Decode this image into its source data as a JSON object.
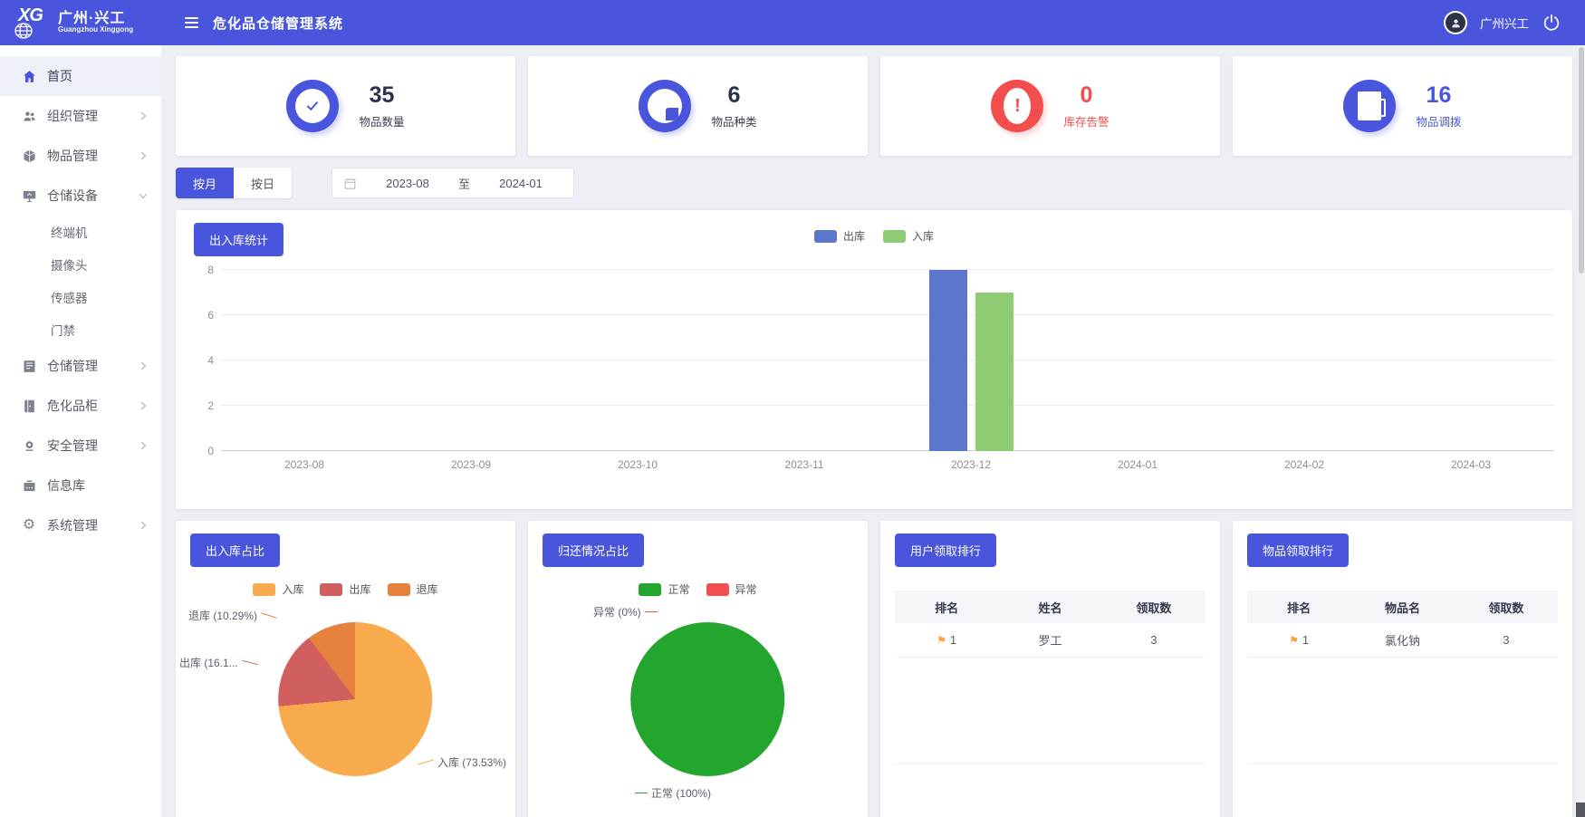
{
  "header": {
    "logo_text": "XG",
    "brand_title": "广州·兴工",
    "brand_subtitle": "Guangzhou Xinggong",
    "app_title": "危化品仓储管理系统",
    "user_name": "广州兴工"
  },
  "sidebar": {
    "items": [
      {
        "label": "首页"
      },
      {
        "label": "组织管理"
      },
      {
        "label": "物品管理"
      },
      {
        "label": "仓储设备"
      },
      {
        "label": "仓储管理"
      },
      {
        "label": "危化品柜"
      },
      {
        "label": "安全管理"
      },
      {
        "label": "信息库"
      },
      {
        "label": "系统管理"
      }
    ],
    "sub_items": [
      {
        "label": "终端机"
      },
      {
        "label": "摄像头"
      },
      {
        "label": "传感器"
      },
      {
        "label": "门禁"
      }
    ]
  },
  "stats": [
    {
      "value": "35",
      "label": "物品数量"
    },
    {
      "value": "6",
      "label": "物品种类"
    },
    {
      "value": "0",
      "label": "库存告警"
    },
    {
      "value": "16",
      "label": "物品调拨"
    }
  ],
  "filters": {
    "by_month": "按月",
    "by_day": "按日",
    "date_start": "2023-08",
    "date_to": "至",
    "date_end": "2024-01"
  },
  "chart_data": [
    {
      "type": "bar",
      "title": "出入库统计",
      "categories": [
        "2023-08",
        "2023-09",
        "2023-10",
        "2023-11",
        "2023-12",
        "2024-01",
        "2024-02",
        "2024-03"
      ],
      "series": [
        {
          "name": "出库",
          "color": "#5b76cb",
          "values": [
            0,
            0,
            0,
            0,
            8,
            0,
            0,
            0
          ]
        },
        {
          "name": "入库",
          "color": "#8ecb73",
          "values": [
            0,
            0,
            0,
            0,
            7,
            0,
            0,
            0
          ]
        }
      ],
      "xlabel": "",
      "ylabel": "",
      "ylim": [
        0,
        8
      ],
      "yticks": [
        0,
        2,
        4,
        6,
        8
      ],
      "grid": true,
      "legend_position": "top-center"
    },
    {
      "type": "pie",
      "title": "出入库占比",
      "slices": [
        {
          "name": "入库",
          "value_pct": 73.53,
          "color": "#f7ab4d",
          "label": "入库 (73.53%)"
        },
        {
          "name": "出库",
          "value_pct": 16.18,
          "color": "#d25f5f",
          "label": "出库 (16.1..."
        },
        {
          "name": "退库",
          "value_pct": 10.29,
          "color": "#e5823e",
          "label": "退库 (10.29%)"
        }
      ],
      "legend_position": "top-center"
    },
    {
      "type": "pie",
      "title": "归还情况占比",
      "slices": [
        {
          "name": "正常",
          "value_pct": 100,
          "color": "#24a52e",
          "label": "正常 (100%)"
        },
        {
          "name": "异常",
          "value_pct": 0,
          "color": "#f05050",
          "label": "异常 (0%)"
        }
      ],
      "legend_position": "top-center"
    }
  ],
  "tables": [
    {
      "title": "用户领取排行",
      "headers": [
        "排名",
        "姓名",
        "领取数"
      ],
      "rows": [
        {
          "rank": "1",
          "name": "罗工",
          "count": "3"
        }
      ]
    },
    {
      "title": "物品领取排行",
      "headers": [
        "排名",
        "物品名",
        "领取数"
      ],
      "rows": [
        {
          "rank": "1",
          "name": "氯化钠",
          "count": "3"
        }
      ]
    }
  ],
  "colors": {
    "primary": "#4a55dd",
    "danger": "#f34e4e",
    "flag": "#ff9f40"
  }
}
